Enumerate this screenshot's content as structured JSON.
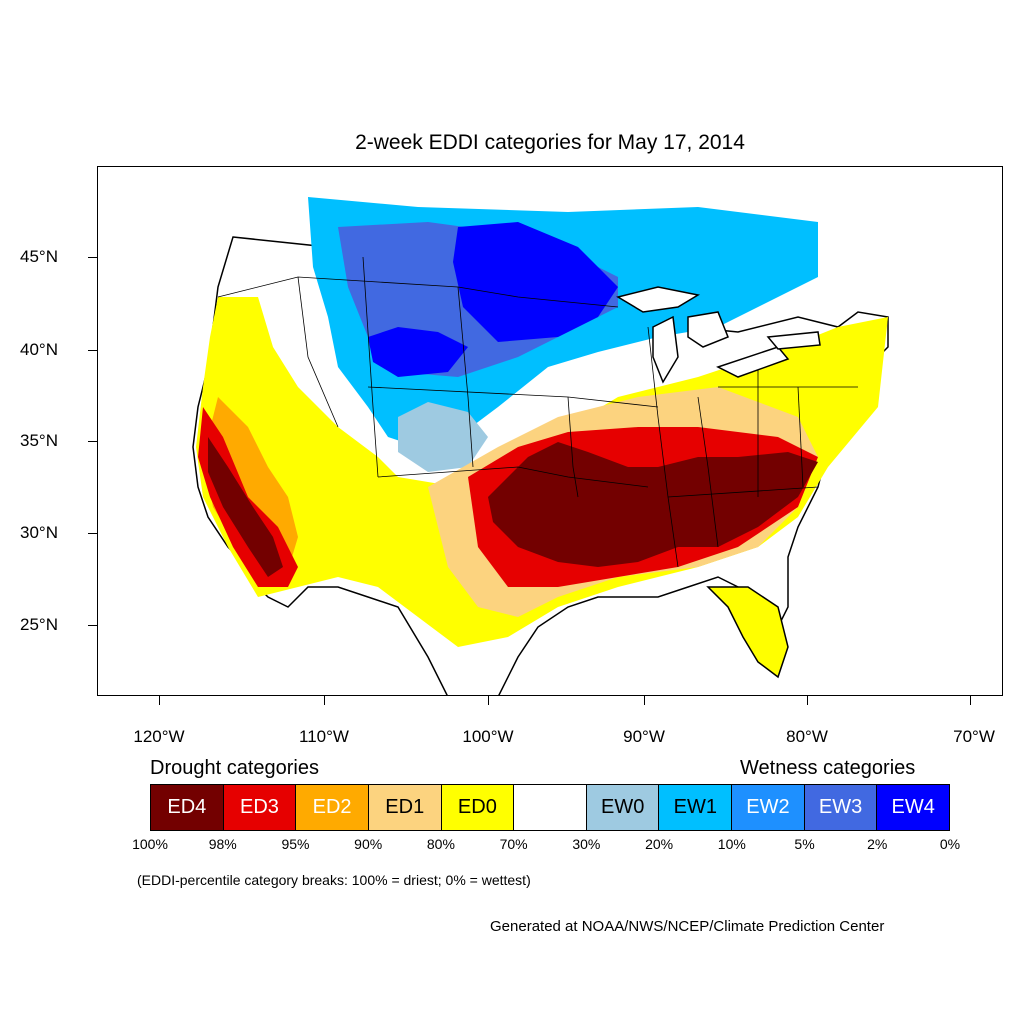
{
  "title": "2-week EDDI categories for May 17, 2014",
  "lat_labels": [
    "45°N",
    "40°N",
    "35°N",
    "30°N",
    "25°N"
  ],
  "lon_labels": [
    "120°W",
    "110°W",
    "100°W",
    "90°W",
    "80°W",
    "70°W"
  ],
  "legend": {
    "drought_heading": "Drought categories",
    "wetness_heading": "Wetness categories",
    "categories": [
      {
        "label": "ED4",
        "color": "#730000",
        "text_color": "#ffffff"
      },
      {
        "label": "ED3",
        "color": "#e60000",
        "text_color": "#ffffff"
      },
      {
        "label": "ED2",
        "color": "#ffaa00",
        "text_color": "#ffffff"
      },
      {
        "label": "ED1",
        "color": "#fcd37f",
        "text_color": "#000000"
      },
      {
        "label": "ED0",
        "color": "#ffff00",
        "text_color": "#000000"
      },
      {
        "label": "",
        "color": "#ffffff",
        "text_color": "#000000"
      },
      {
        "label": "EW0",
        "color": "#9ecae1",
        "text_color": "#000000"
      },
      {
        "label": "EW1",
        "color": "#00bfff",
        "text_color": "#000000"
      },
      {
        "label": "EW2",
        "color": "#1e90ff",
        "text_color": "#ffffff"
      },
      {
        "label": "EW3",
        "color": "#4169e1",
        "text_color": "#ffffff"
      },
      {
        "label": "EW4",
        "color": "#0000ff",
        "text_color": "#ffffff"
      }
    ],
    "percentiles": [
      "100%",
      "98%",
      "95%",
      "90%",
      "80%",
      "70%",
      "30%",
      "20%",
      "10%",
      "5%",
      "2%",
      "0%"
    ]
  },
  "note": "(EDDI-percentile category breaks: 100% = driest; 0% = wettest)",
  "credit": "Generated at NOAA/NWS/NCEP/Climate Prediction Center"
}
